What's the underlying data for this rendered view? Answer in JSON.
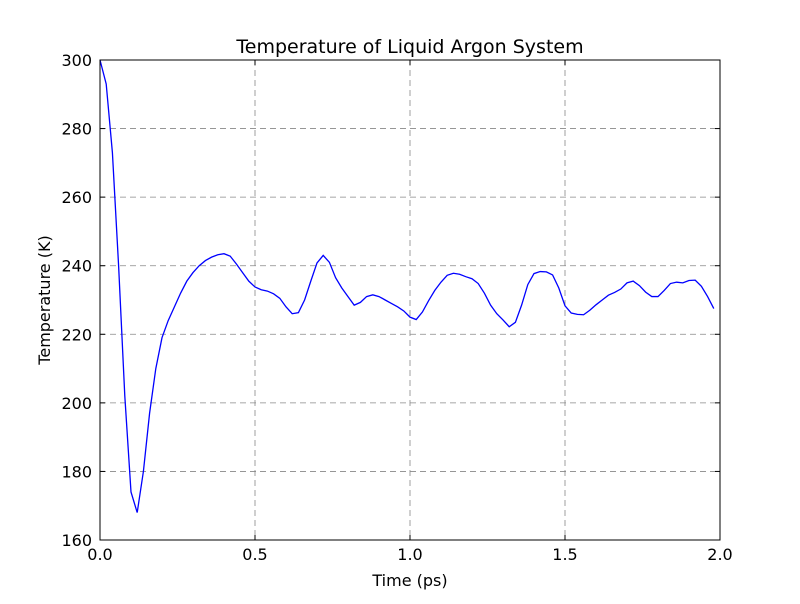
{
  "chart_data": {
    "type": "line",
    "title": "Temperature of Liquid Argon System",
    "x_label": "Time (ps)",
    "y_label": "Temperature (K)",
    "xlim": [
      0,
      2
    ],
    "ylim": [
      160,
      300
    ],
    "xticks": [
      {
        "value": 0,
        "label": "0.0"
      },
      0.5,
      {
        "value": 1,
        "label": "1.0"
      },
      1.5,
      {
        "value": 2,
        "label": "2.0"
      }
    ],
    "yticks": [
      160,
      180,
      200,
      220,
      240,
      260,
      280,
      300
    ],
    "grid": true,
    "series": [
      {
        "color": "#0000ff",
        "x": [
          0,
          0.02,
          0.04,
          0.06,
          0.08,
          0.1,
          0.12,
          0.14,
          0.16,
          0.18,
          0.2,
          0.22,
          0.24,
          0.26,
          0.28,
          0.3,
          0.32,
          0.34,
          0.36,
          0.38,
          0.4,
          0.42,
          0.44,
          0.46,
          0.48,
          0.5,
          0.52,
          0.54,
          0.56,
          0.58,
          0.6,
          0.62,
          0.64,
          0.66,
          0.68,
          0.7,
          0.72,
          0.74,
          0.76,
          0.78,
          0.8,
          0.82,
          0.84,
          0.86,
          0.88,
          0.9,
          0.92,
          0.94,
          0.96,
          0.98,
          1,
          1.02,
          1.04,
          1.06,
          1.08,
          1.1,
          1.12,
          1.14,
          1.16,
          1.18,
          1.2,
          1.22,
          1.24,
          1.26,
          1.28,
          1.3,
          1.32,
          1.34,
          1.36,
          1.38,
          1.4,
          1.42,
          1.44,
          1.46,
          1.48,
          1.5,
          1.52,
          1.54,
          1.56,
          1.58,
          1.6,
          1.62,
          1.64,
          1.66,
          1.68,
          1.7,
          1.72,
          1.74,
          1.76,
          1.78,
          1.8,
          1.82,
          1.84,
          1.86,
          1.88,
          1.9,
          1.92,
          1.94,
          1.96,
          1.98
        ],
        "values": [
          300,
          293,
          273,
          240,
          202,
          174,
          168,
          180,
          197,
          210,
          219,
          224,
          228,
          232,
          235.5,
          238,
          240,
          241.5,
          242.5,
          243.2,
          243.5,
          242.8,
          240.5,
          238,
          235.5,
          233.8,
          233,
          232.6,
          231.8,
          230.5,
          228,
          226,
          226.3,
          230,
          235.5,
          240.8,
          243,
          241,
          236.5,
          233.5,
          231,
          228.5,
          229.3,
          231,
          231.5,
          231,
          230,
          229,
          228,
          226.8,
          225,
          224.3,
          226.5,
          229.8,
          232.8,
          235.2,
          237.2,
          237.8,
          237.5,
          236.8,
          236.2,
          234.8,
          232,
          228.5,
          226,
          224.2,
          222.2,
          223.5,
          228.5,
          234.5,
          237.7,
          238.3,
          238.2,
          237.3,
          233.5,
          228.3,
          226.2,
          225.8,
          225.7,
          227,
          228.6,
          230,
          231.4,
          232.2,
          233.2,
          235,
          235.5,
          234.2,
          232.3,
          231,
          231,
          232.8,
          234.8,
          235.2,
          235,
          235.7,
          235.8,
          234,
          231,
          227.5
        ]
      }
    ]
  }
}
